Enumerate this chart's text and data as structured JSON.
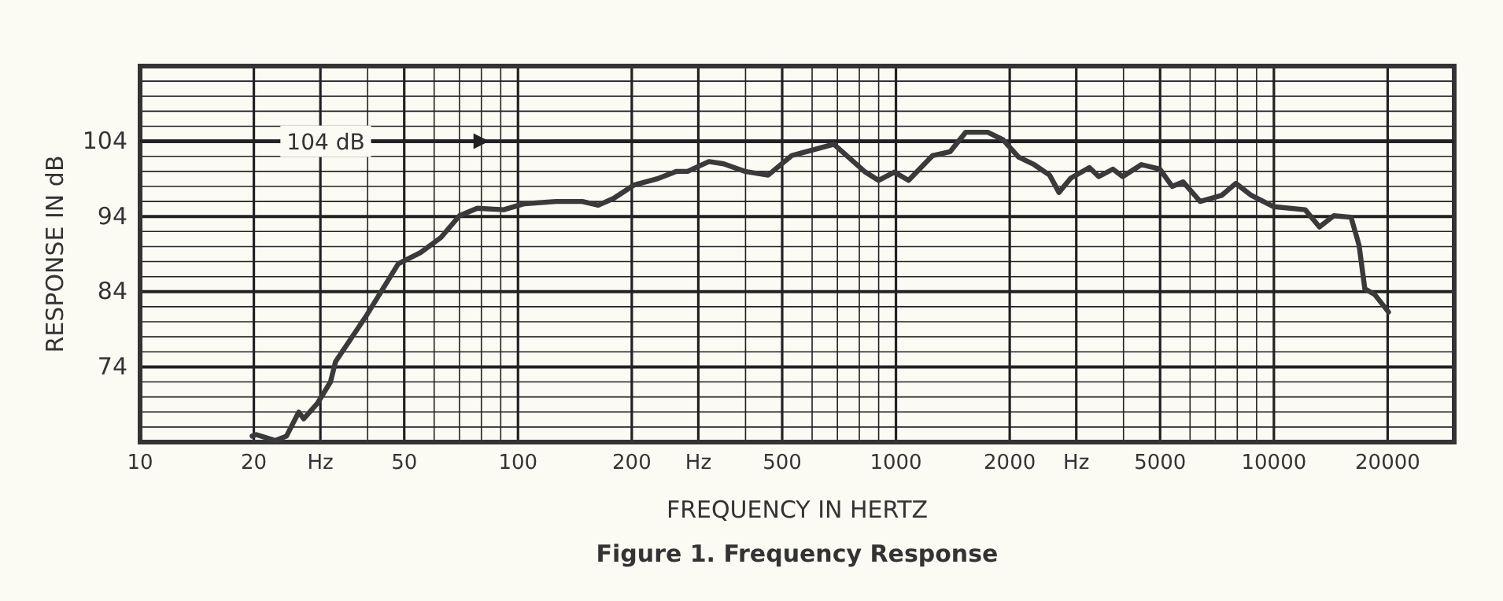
{
  "chart_data": {
    "type": "line",
    "title": "Figure 1. Frequency Response",
    "xlabel": "FREQUENCY IN HERTZ",
    "ylabel": "RESPONSE IN dB",
    "log": "x",
    "grid": true,
    "line_style": "solid",
    "marker": "none",
    "xlim": [
      10,
      30000
    ],
    "ylim": [
      64,
      114
    ],
    "xticks": [
      10,
      20,
      {
        "value": 30,
        "label": "Hz"
      },
      {
        "value": 40,
        "label": null
      },
      50,
      {
        "value": 60,
        "label": null
      },
      {
        "value": 70,
        "label": null
      },
      {
        "value": 80,
        "label": null
      },
      {
        "value": 90,
        "label": null
      },
      100,
      200,
      {
        "value": 300,
        "label": "Hz"
      },
      {
        "value": 400,
        "label": null
      },
      500,
      {
        "value": 600,
        "label": null
      },
      {
        "value": 700,
        "label": null
      },
      {
        "value": 800,
        "label": null
      },
      {
        "value": 900,
        "label": null
      },
      1000,
      2000,
      {
        "value": 3000,
        "label": "Hz"
      },
      {
        "value": 4000,
        "label": null
      },
      5000,
      {
        "value": 6000,
        "label": null
      },
      {
        "value": 7000,
        "label": null
      },
      {
        "value": 8000,
        "label": null
      },
      {
        "value": 9000,
        "label": null
      },
      10000,
      20000
    ],
    "yticks": [
      {
        "value": 66,
        "label": null
      },
      {
        "value": 68,
        "label": null
      },
      {
        "value": 70,
        "label": null
      },
      {
        "value": 72,
        "label": null
      },
      74,
      {
        "value": 76,
        "label": null
      },
      {
        "value": 78,
        "label": null
      },
      {
        "value": 80,
        "label": null
      },
      {
        "value": 82,
        "label": null
      },
      84,
      {
        "value": 86,
        "label": null
      },
      {
        "value": 88,
        "label": null
      },
      {
        "value": 90,
        "label": null
      },
      {
        "value": 92,
        "label": null
      },
      94,
      {
        "value": 96,
        "label": null
      },
      {
        "value": 98,
        "label": null
      },
      {
        "value": 100,
        "label": null
      },
      {
        "value": 102,
        "label": null
      },
      104,
      {
        "value": 106,
        "label": null
      },
      {
        "value": 108,
        "label": null
      },
      {
        "value": 110,
        "label": null
      },
      {
        "value": 112,
        "label": null
      }
    ],
    "ref_lines": [
      {
        "axis": "y",
        "value": 104,
        "label": "104 dB"
      }
    ],
    "series": [
      {
        "color": "#3a3a3a",
        "x": [
          19.8,
          20.3,
          22.8,
          24.4,
          26.3,
          27.1,
          29.5,
          31.9,
          32.9,
          39.8,
          48.2,
          55.2,
          62.5,
          70,
          78,
          91.6,
          104,
          126,
          148,
          163,
          179,
          203,
          233,
          263,
          281,
          320,
          350,
          398,
          459,
          530,
          685,
          830,
          899,
          990,
          1080,
          1250,
          1390,
          1530,
          1750,
          1920,
          2110,
          2320,
          2550,
          2700,
          2900,
          3250,
          3440,
          3750,
          3980,
          4460,
          4990,
          5380,
          5750,
          6380,
          7270,
          7930,
          8720,
          10000,
          12100,
          13200,
          14400,
          16000,
          16800,
          17400,
          18500,
          20100
        ],
        "values": [
          64.8,
          65,
          64.2,
          64.8,
          68,
          67.1,
          69.2,
          72,
          74.7,
          80.9,
          87.7,
          89.2,
          91.2,
          94.1,
          95.1,
          94.9,
          95.7,
          96,
          96,
          95.5,
          96.4,
          98.2,
          99,
          100,
          100,
          101.3,
          101,
          100,
          99.5,
          102.1,
          103.6,
          99.9,
          98.8,
          99.9,
          98.8,
          102.1,
          102.6,
          105.2,
          105.2,
          104.2,
          101.9,
          100.9,
          99.5,
          97.2,
          99.1,
          100.5,
          99.3,
          100.3,
          99.3,
          100.9,
          100.3,
          98,
          98.6,
          96,
          96.8,
          98.4,
          96.8,
          95.3,
          94.9,
          92.6,
          94.1,
          93.9,
          90.2,
          84.4,
          83.6,
          81.3
        ]
      }
    ]
  }
}
